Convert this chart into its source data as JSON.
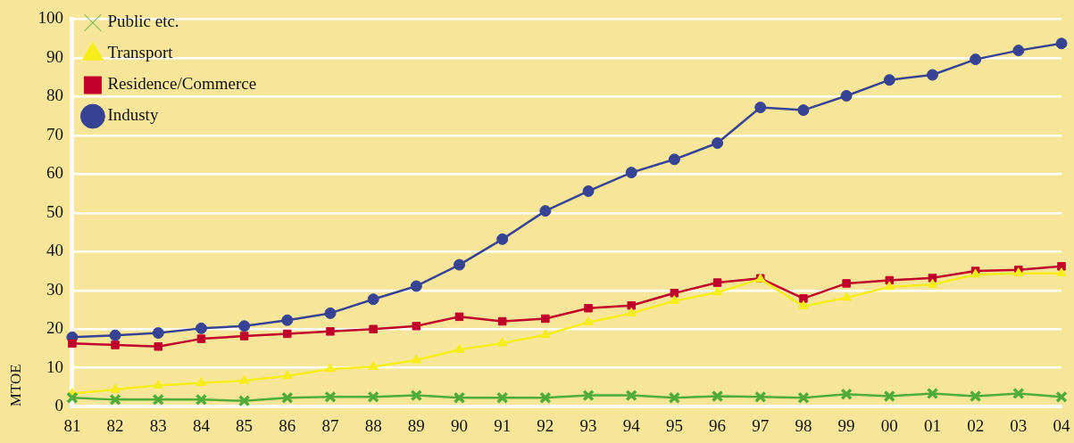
{
  "chart_data": {
    "type": "line",
    "ylabel": "MTOE",
    "categories": [
      "81",
      "82",
      "83",
      "84",
      "85",
      "86",
      "87",
      "88",
      "89",
      "90",
      "91",
      "92",
      "93",
      "94",
      "95",
      "96",
      "97",
      "98",
      "99",
      "00",
      "01",
      "02",
      "03",
      "04"
    ],
    "series": [
      {
        "name": "Industy",
        "color": "#364394",
        "marker": "circle",
        "values": [
          17.9,
          18.4,
          19.0,
          20.2,
          20.8,
          22.3,
          24.1,
          27.7,
          31.1,
          36.6,
          43.2,
          50.5,
          55.6,
          60.4,
          63.8,
          68.0,
          77.2,
          76.5,
          80.2,
          84.3,
          85.6,
          89.6,
          91.9,
          93.7
        ]
      },
      {
        "name": "Residence/Commerce",
        "color": "#c0002a",
        "marker": "square",
        "values": [
          16.3,
          15.9,
          15.5,
          17.5,
          18.2,
          18.8,
          19.4,
          20.0,
          20.8,
          23.2,
          22.0,
          22.7,
          25.4,
          26.1,
          29.3,
          32.0,
          33.1,
          27.9,
          31.8,
          32.6,
          33.2,
          35.0,
          35.3,
          36.2
        ]
      },
      {
        "name": "Transport",
        "color": "#f5ee1a",
        "marker": "triangle",
        "values": [
          3.4,
          4.4,
          5.5,
          6.1,
          6.7,
          7.9,
          9.7,
          10.3,
          12.0,
          14.7,
          16.4,
          18.5,
          21.8,
          24.1,
          27.3,
          29.5,
          32.9,
          25.9,
          28.1,
          30.9,
          31.5,
          34.1,
          34.4,
          34.4
        ]
      },
      {
        "name": "Public etc.",
        "color": "#4fab3a",
        "marker": "cross",
        "values": [
          2.3,
          1.8,
          1.8,
          1.8,
          1.5,
          2.3,
          2.5,
          2.5,
          2.9,
          2.3,
          2.3,
          2.3,
          2.9,
          2.9,
          2.3,
          2.7,
          2.5,
          2.3,
          3.2,
          2.7,
          3.4,
          2.7,
          3.4,
          2.5
        ]
      }
    ],
    "ylim": [
      0,
      100
    ],
    "yticks": [
      0,
      10,
      20,
      30,
      40,
      50,
      60,
      70,
      80,
      90,
      100
    ],
    "grid": "y",
    "legend": "top left",
    "line_style": "solid"
  }
}
